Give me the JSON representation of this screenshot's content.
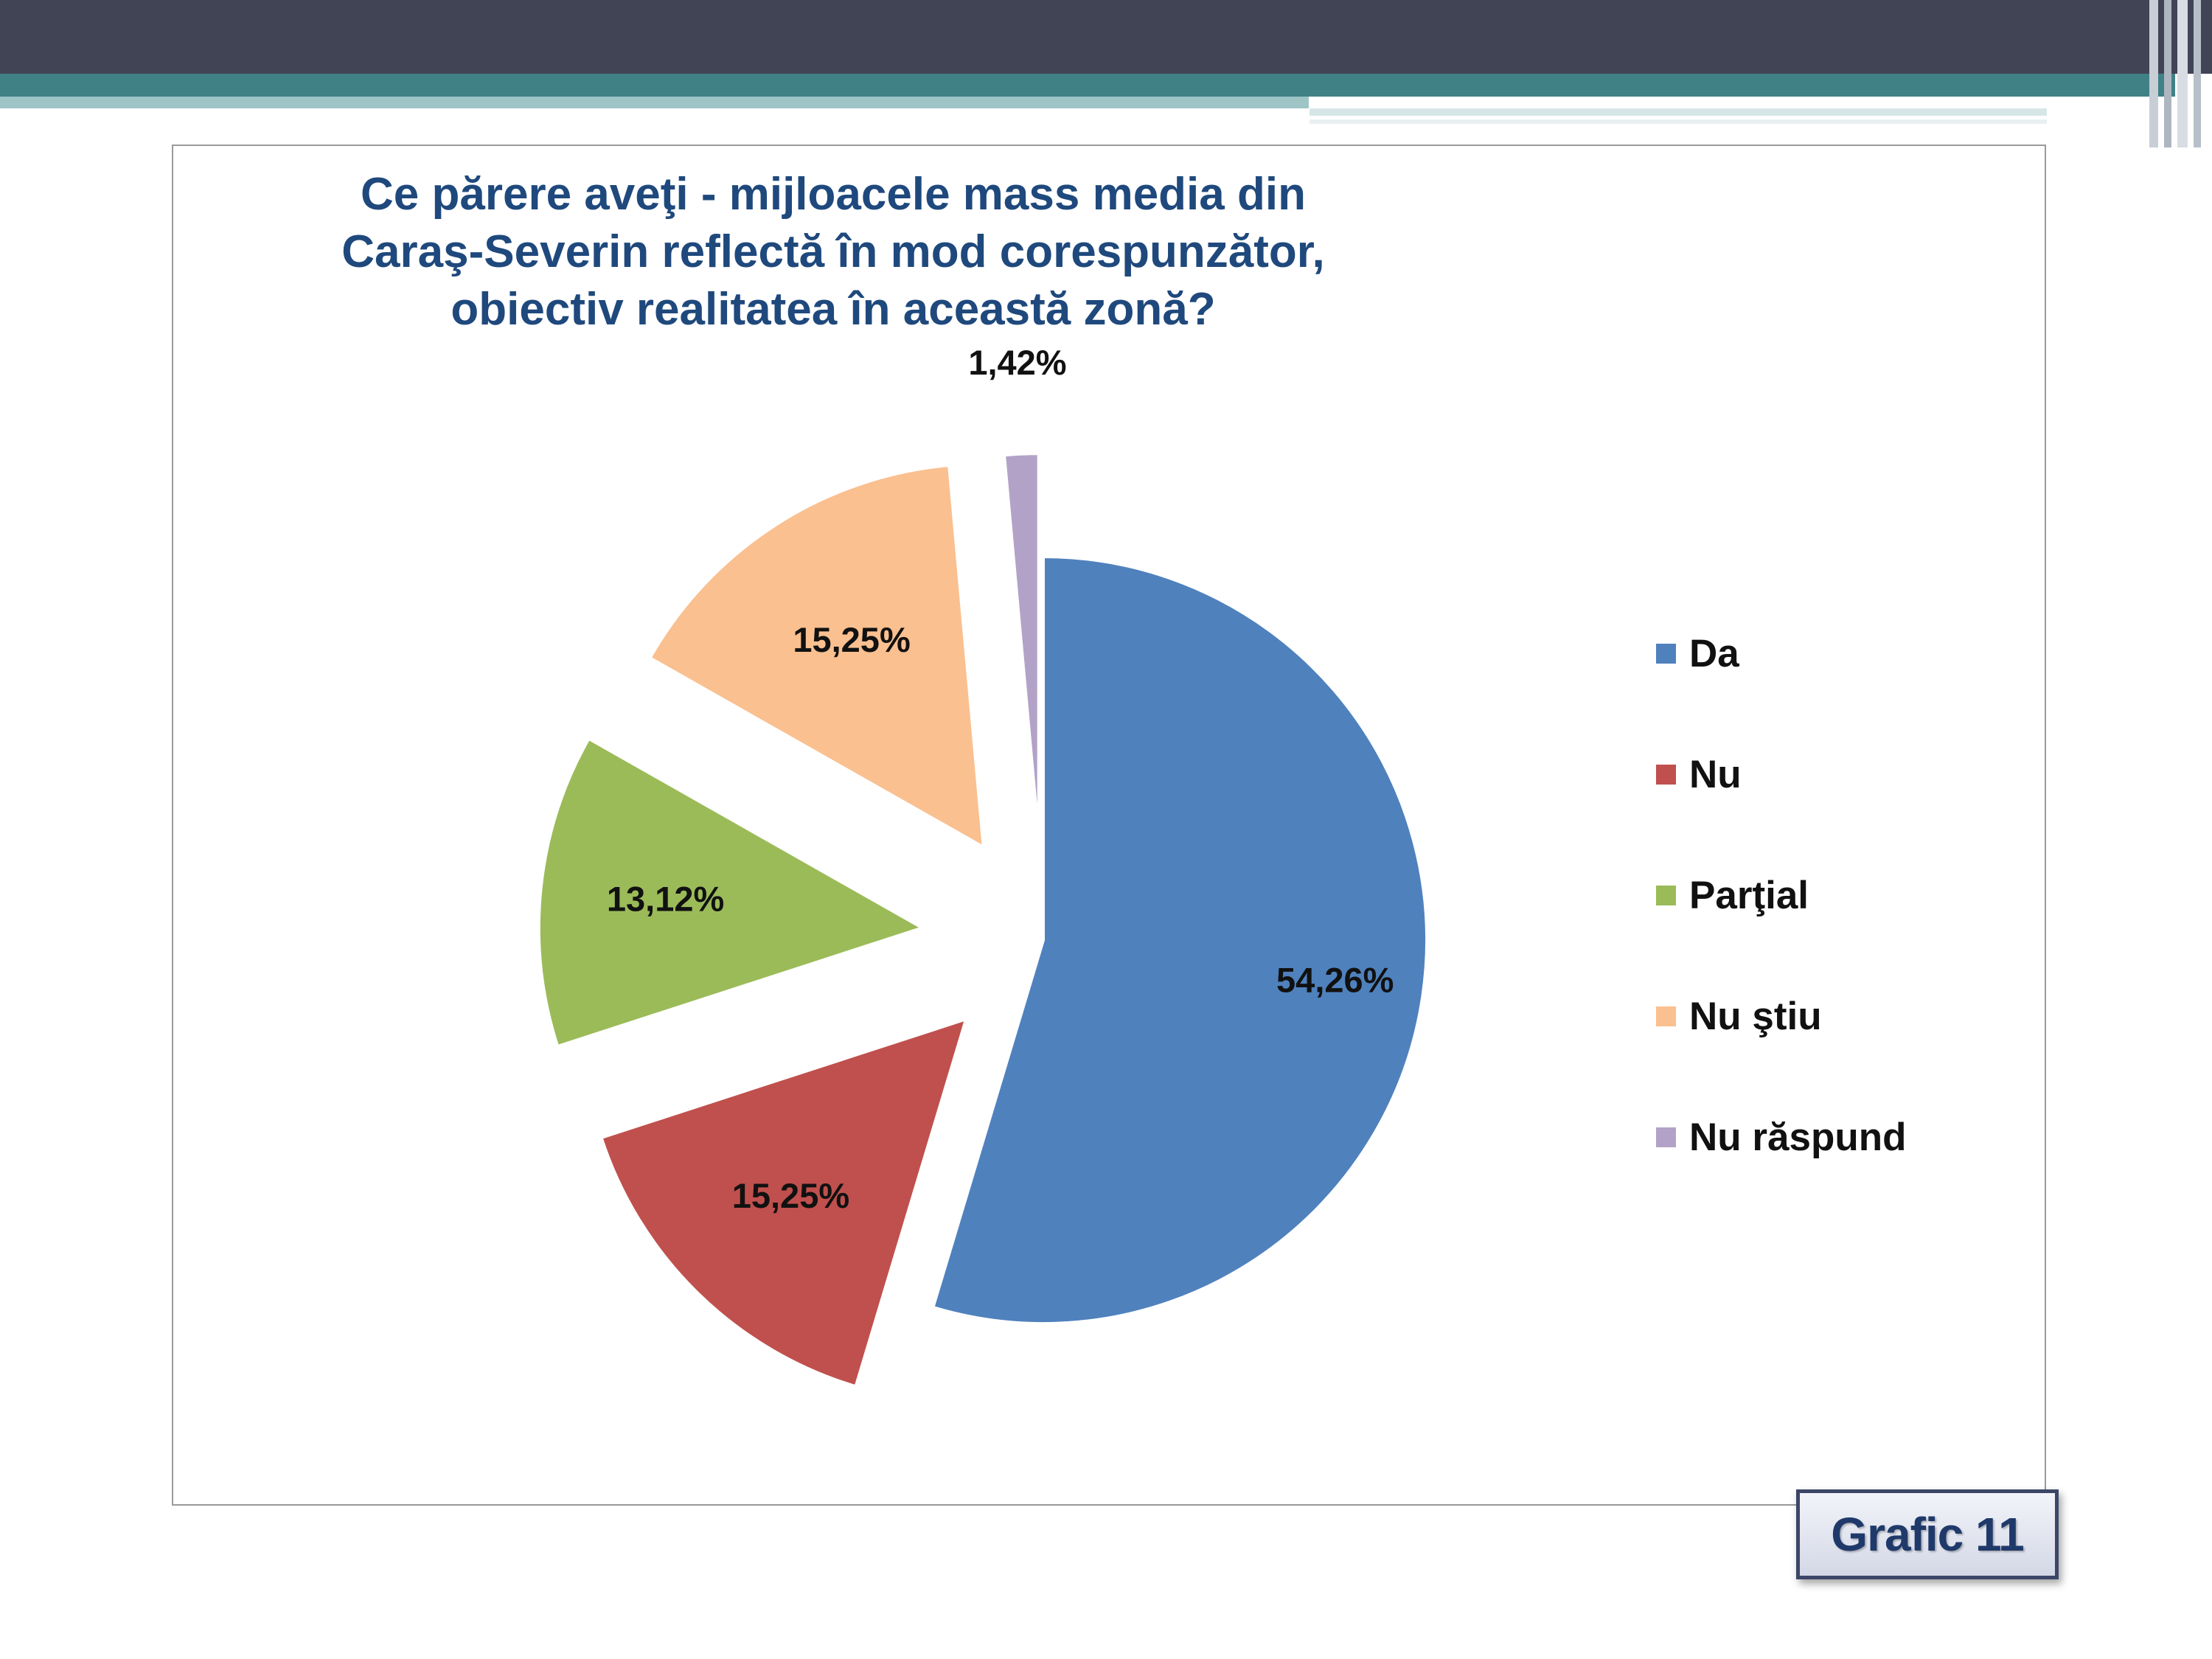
{
  "chart_data": {
    "type": "pie",
    "title": "Ce părere aveţi - mijloacele mass media din Caraş-Severin reflectă în mod corespunzător, obiectiv realitatea în această zonă?",
    "legend_position": "right",
    "slices": [
      {
        "label": "Da",
        "value": 54.26,
        "value_label": "54,26%",
        "color": "#4f81bd"
      },
      {
        "label": "Nu",
        "value": 15.25,
        "value_label": "15,25%",
        "color": "#c0504d"
      },
      {
        "label": "Parţial",
        "value": 13.12,
        "value_label": "13,12%",
        "color": "#9bbb59"
      },
      {
        "label": "Nu ştiu",
        "value": 15.25,
        "value_label": "15,25%",
        "color": "#fac090"
      },
      {
        "label": "Nu răspund",
        "value": 1.42,
        "value_label": "1,42%",
        "color": "#b3a2c7"
      }
    ]
  },
  "badge": {
    "label": "Grafic 11"
  }
}
